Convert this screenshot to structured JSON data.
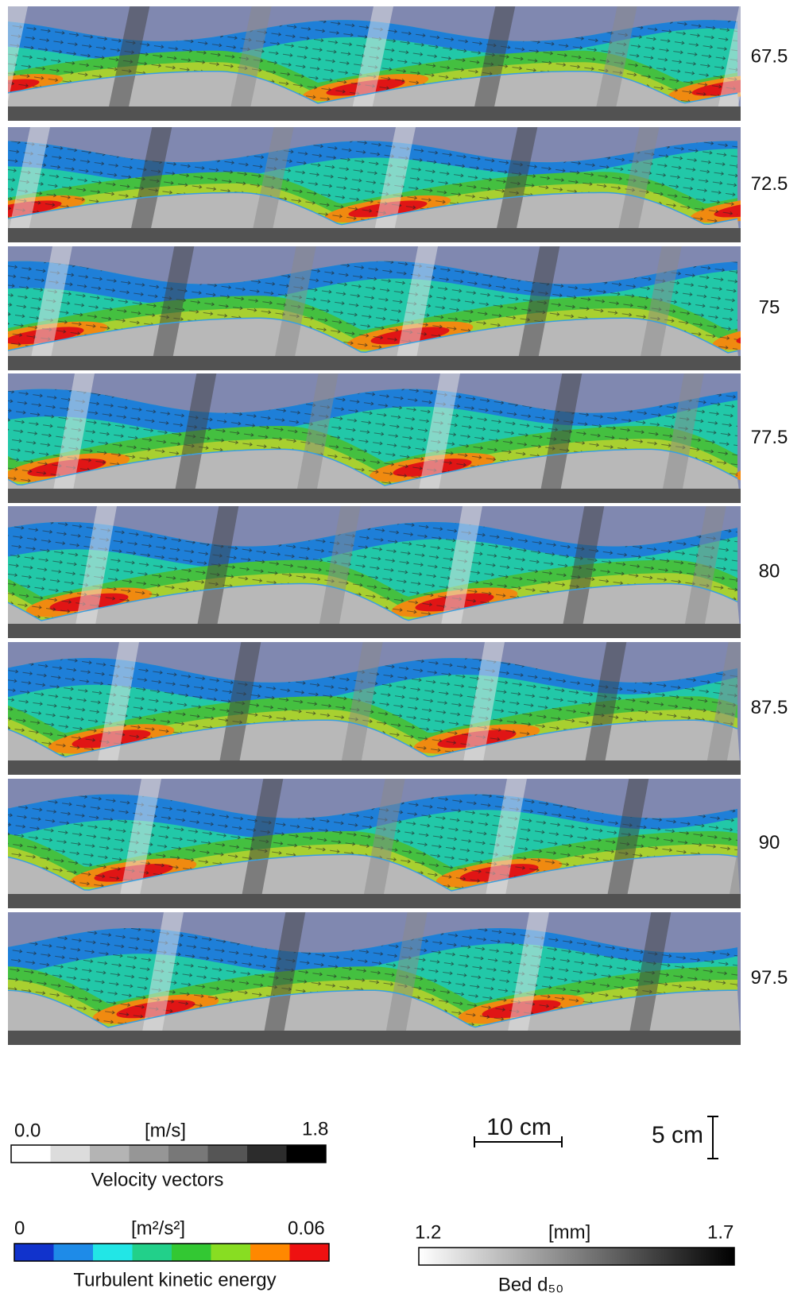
{
  "panels": [
    {
      "label": "67.5"
    },
    {
      "label": "72.5"
    },
    {
      "label": "75"
    },
    {
      "label": "77.5"
    },
    {
      "label": "80"
    },
    {
      "label": "87.5"
    },
    {
      "label": "90"
    },
    {
      "label": "97.5"
    }
  ],
  "legends": {
    "velocity": {
      "min": "0.0",
      "unit": "[m/s]",
      "max": "1.8",
      "title": "Velocity vectors"
    },
    "tke": {
      "min": "0",
      "unit": "[m²/s²]",
      "max": "0.06",
      "title": "Turbulent kinetic energy"
    },
    "bed": {
      "min": "1.2",
      "unit": "[mm]",
      "max": "1.7",
      "title": "Bed d₅₀"
    }
  },
  "scale_bars": {
    "horizontal": "10 cm",
    "vertical": "5 cm"
  }
}
